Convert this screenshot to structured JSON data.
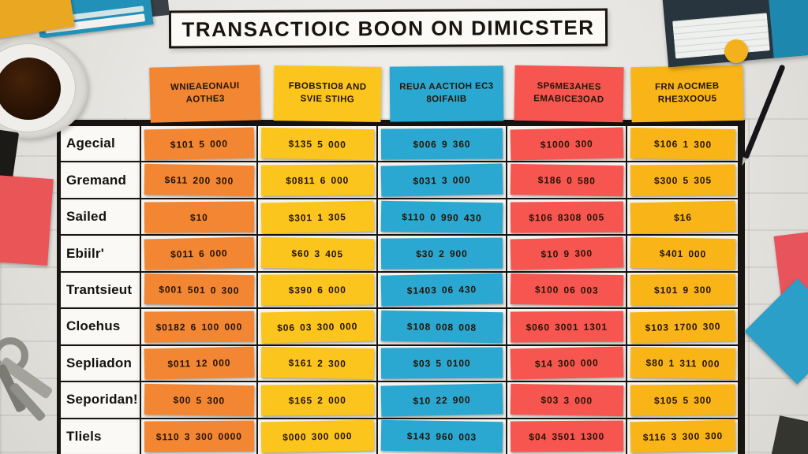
{
  "title": "TRANSACTIOIC BOON ON DIMICSTER",
  "chart_data": {
    "type": "table",
    "title": "TRANSACTIOIC BOON ON DIMICSTER",
    "legend_position": "none",
    "grid": true,
    "columns": [
      {
        "header": "WNIEAEONAUI AOTHE3",
        "color": "#f28633"
      },
      {
        "header": "FBOBSTIO8 AND SVIE STIHG",
        "color": "#fcc51e"
      },
      {
        "header": "REUA AACTIOH EC3 8OIFAIIB",
        "color": "#2ba8d2"
      },
      {
        "header": "SP6ME3AHES EMABICE3OAD",
        "color": "#f6564f"
      },
      {
        "header": "FRN AOCMEB RHE3XOOU5",
        "color": "#f9b417"
      }
    ],
    "rows": [
      {
        "label": "Agecial",
        "values": [
          "$101 5 000",
          "$135 5 000",
          "$006 9 360",
          "$1000 300",
          "$106 1 300"
        ]
      },
      {
        "label": "Gremand",
        "values": [
          "$611 200 300",
          "$0811 6 000",
          "$031 3 000",
          "$186 0 580",
          "$300 5 305"
        ]
      },
      {
        "label": "Sailed",
        "values": [
          "$10",
          "$301 1 305",
          "$110 0 990 430",
          "$106 8308 005",
          "$16"
        ]
      },
      {
        "label": "Ebiilr'",
        "values": [
          "$011 6 000",
          "$60 3 405",
          "$30 2 900",
          "$10 9 300",
          "$401 000"
        ]
      },
      {
        "label": "Trantsieut",
        "values": [
          "$001 501 0 300",
          "$390 6 000",
          "$1403 06 430",
          "$100 06 003",
          "$101 9 300"
        ]
      },
      {
        "label": "Cloehus",
        "values": [
          "$0182 6 100 000",
          "$06 03 300 000",
          "$108 008 008",
          "$060 3001 1301",
          "$103 1700 300"
        ]
      },
      {
        "label": "Sepliadon",
        "values": [
          "$011 12 000",
          "$161 2 300",
          "$03 5 0100",
          "$14 300 000",
          "$80 1 311 000"
        ]
      },
      {
        "label": "Seporidan!",
        "values": [
          "$00 5 300",
          "$165 2 000",
          "$10 22 900",
          "$03 3 000",
          "$105 5 300"
        ]
      },
      {
        "label": "Tliels",
        "values": [
          "$110 3 300 0000",
          "$000 300 000",
          "$143 960 003",
          "$04 3501 1300",
          "$116 3 300 300"
        ]
      }
    ]
  },
  "colors": {
    "background": "#e7e6e2",
    "grid_line": "#171411",
    "label_text": "#141210",
    "note_text": "#241406",
    "banner_border": "#17130e"
  },
  "decor_items": [
    "yellow-sticky-note",
    "blue-folder",
    "dark-notebook",
    "coffee-cup",
    "red-sticky-note-left",
    "keys",
    "spiral-notebook",
    "yellow-dot",
    "pen",
    "red-sticky-note-right",
    "blue-folder-corner",
    "dark-object"
  ]
}
